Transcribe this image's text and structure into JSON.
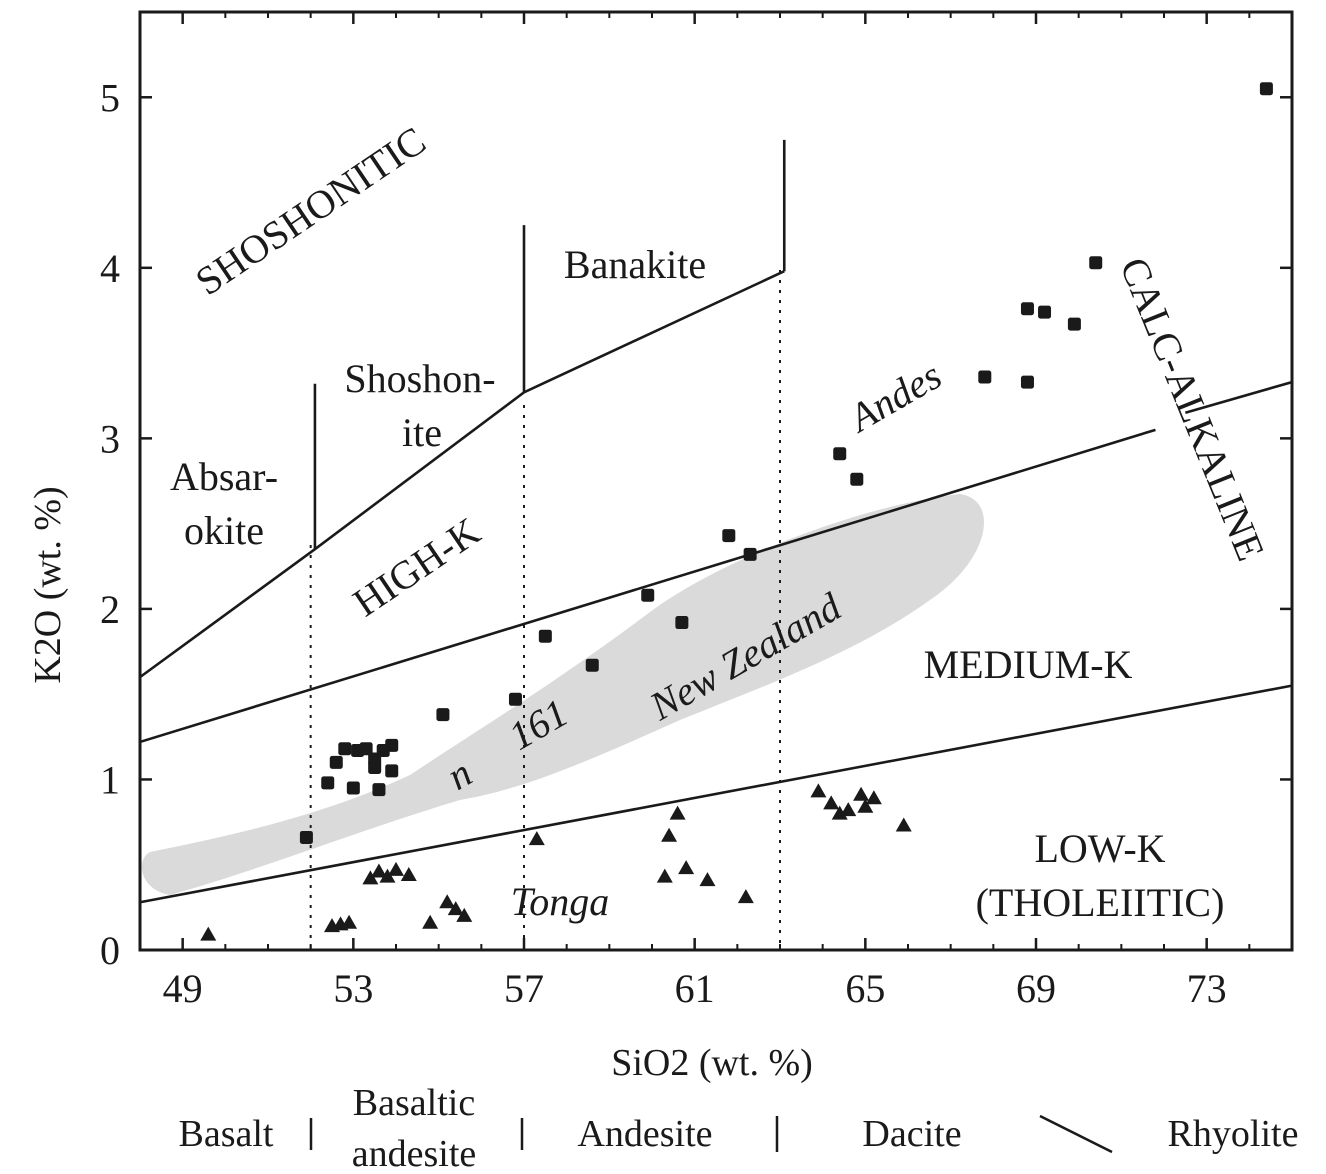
{
  "chart_data": {
    "type": "scatter",
    "xlabel": "SiO2 (wt. %)",
    "ylabel": "K2O (wt. %)",
    "xlim": [
      48,
      75
    ],
    "ylim": [
      0,
      5.5
    ],
    "x_ticks": [
      49,
      53,
      57,
      61,
      65,
      69,
      73
    ],
    "y_ticks": [
      0,
      1,
      2,
      3,
      4,
      5
    ],
    "grid": false,
    "lines": [
      {
        "name": "medium-k-low-k-boundary",
        "points": [
          [
            48,
            0.28
          ],
          [
            75,
            1.55
          ]
        ]
      },
      {
        "name": "high-k-medium-k-boundary",
        "points": [
          [
            48,
            1.22
          ],
          [
            71.8,
            3.05
          ]
        ]
      },
      {
        "name": "high-k-medium-k-boundary-end",
        "points": [
          [
            72.5,
            3.15
          ],
          [
            75,
            3.33
          ]
        ]
      },
      {
        "name": "shoshonitic-high-k-boundary",
        "points": [
          [
            48,
            1.6
          ],
          [
            52.1,
            2.35
          ],
          [
            57,
            3.27
          ],
          [
            63.1,
            3.98
          ]
        ]
      },
      {
        "name": "absarokite-shoshonite-divider",
        "points": [
          [
            52.1,
            2.35
          ],
          [
            52.1,
            3.32
          ]
        ]
      },
      {
        "name": "shoshonite-banakite-divider",
        "points": [
          [
            57,
            3.27
          ],
          [
            57,
            4.25
          ]
        ]
      },
      {
        "name": "banakite-divider",
        "points": [
          [
            63.1,
            3.98
          ],
          [
            63.1,
            4.75
          ]
        ]
      }
    ],
    "dividers": [
      52,
      57,
      63
    ],
    "series": [
      {
        "name": "Andes",
        "marker": "square",
        "points": [
          [
            74.4,
            5.05
          ],
          [
            70.4,
            4.03
          ],
          [
            69.9,
            3.67
          ],
          [
            69.2,
            3.74
          ],
          [
            68.8,
            3.76
          ],
          [
            68.8,
            3.33
          ],
          [
            67.8,
            3.36
          ],
          [
            64.4,
            2.91
          ],
          [
            64.8,
            2.76
          ],
          [
            62.3,
            2.32
          ],
          [
            61.8,
            2.43
          ],
          [
            60.7,
            1.92
          ],
          [
            59.9,
            2.08
          ],
          [
            58.6,
            1.67
          ],
          [
            57.5,
            1.84
          ],
          [
            56.8,
            1.47
          ],
          [
            55.1,
            1.38
          ],
          [
            53.9,
            1.2
          ],
          [
            53.7,
            1.17
          ],
          [
            53.5,
            1.12
          ],
          [
            53.3,
            1.18
          ],
          [
            53.1,
            1.17
          ],
          [
            52.8,
            1.18
          ],
          [
            52.6,
            1.1
          ],
          [
            53.5,
            1.07
          ],
          [
            53.9,
            1.05
          ],
          [
            52.4,
            0.98
          ],
          [
            53.0,
            0.95
          ],
          [
            53.6,
            0.94
          ],
          [
            51.9,
            0.66
          ]
        ]
      },
      {
        "name": "Tonga",
        "marker": "triangle",
        "points": [
          [
            49.6,
            0.09
          ],
          [
            52.5,
            0.14
          ],
          [
            52.7,
            0.15
          ],
          [
            52.9,
            0.16
          ],
          [
            53.4,
            0.42
          ],
          [
            53.6,
            0.46
          ],
          [
            53.8,
            0.43
          ],
          [
            54.0,
            0.47
          ],
          [
            54.3,
            0.44
          ],
          [
            54.8,
            0.16
          ],
          [
            55.2,
            0.28
          ],
          [
            55.4,
            0.24
          ],
          [
            55.6,
            0.2
          ],
          [
            57.3,
            0.65
          ],
          [
            60.3,
            0.43
          ],
          [
            60.4,
            0.67
          ],
          [
            60.6,
            0.8
          ],
          [
            60.8,
            0.48
          ],
          [
            61.3,
            0.41
          ],
          [
            62.2,
            0.31
          ],
          [
            63.9,
            0.93
          ],
          [
            64.2,
            0.86
          ],
          [
            64.4,
            0.8
          ],
          [
            64.6,
            0.82
          ],
          [
            64.9,
            0.91
          ],
          [
            65.2,
            0.89
          ],
          [
            65.0,
            0.84
          ],
          [
            65.9,
            0.73
          ]
        ]
      }
    ],
    "field_labels": {
      "shoshonitic": "SHOSHONITIC",
      "banakite": "Banakite",
      "shoshonite_1": "Shoshon-",
      "shoshonite_2": "ite",
      "absarokite_1": "Absar-",
      "absarokite_2": "okite",
      "high_k": "HIGH-K",
      "calc_alkaline": "CALC-ALKALINE",
      "medium_k": "MEDIUM-K",
      "low_k_1": "LOW-K",
      "low_k_2": "(THOLEIITIC)"
    },
    "region_labels": {
      "andes": "Andes",
      "new_zealand": "New Zealand",
      "tonga": "Tonga",
      "n": "n",
      "count": "161"
    },
    "rock_types": {
      "basalt": "Basalt",
      "basaltic_andesite_1": "Basaltic",
      "basaltic_andesite_2": "andesite",
      "andesite": "Andesite",
      "dacite": "Dacite",
      "rhyolite": "Rhyolite"
    },
    "colors": {
      "ink": "#1a1a1a",
      "new_zealand_field": "#d3d3d3"
    }
  }
}
